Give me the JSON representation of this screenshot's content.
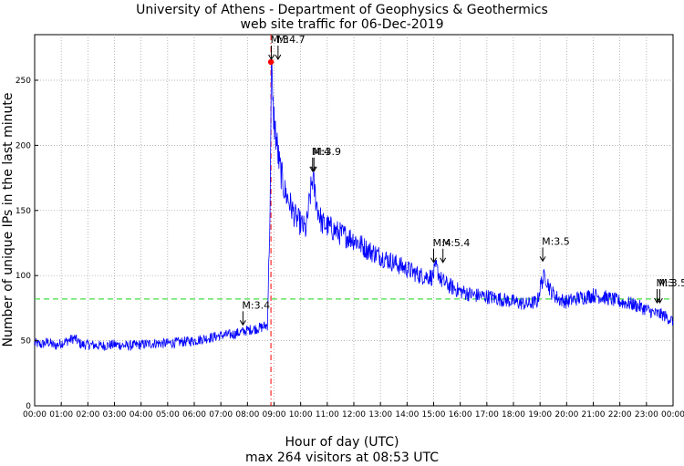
{
  "chart_data": {
    "type": "line",
    "title": "University of Athens - Department of Geophysics & Geothermics",
    "subtitle": "web site traffic for 06-Dec-2019",
    "xlabel": "Hour of day (UTC)",
    "footer": "max 264 visitors at 08:53 UTC",
    "ylabel": "Number of unique IPs in the last minute",
    "xlim": [
      0,
      24
    ],
    "ylim": [
      0,
      285
    ],
    "x_ticks": [
      "00:00",
      "01:00",
      "02:00",
      "03:00",
      "04:00",
      "05:00",
      "06:00",
      "07:00",
      "08:00",
      "09:00",
      "10:00",
      "11:00",
      "12:00",
      "13:00",
      "14:00",
      "15:00",
      "16:00",
      "17:00",
      "18:00",
      "19:00",
      "20:00",
      "21:00",
      "22:00",
      "23:00",
      "00:00"
    ],
    "y_ticks": [
      0,
      50,
      100,
      150,
      200,
      250
    ],
    "grid": true,
    "mean_line": 82,
    "peak": {
      "hour": 8.883,
      "value": 264
    },
    "series": [
      {
        "name": "visitors",
        "color": "#0000ff",
        "x": [
          0,
          0.25,
          0.5,
          0.75,
          1.0,
          1.25,
          1.5,
          1.75,
          2.0,
          2.5,
          3.0,
          3.5,
          4.0,
          4.5,
          5.0,
          5.5,
          6.0,
          6.5,
          7.0,
          7.5,
          7.83,
          8.0,
          8.25,
          8.5,
          8.75,
          8.85,
          8.9,
          8.95,
          9.05,
          9.2,
          9.4,
          9.6,
          9.8,
          10.0,
          10.2,
          10.35,
          10.45,
          10.6,
          10.8,
          11.0,
          11.5,
          12.0,
          12.5,
          13.0,
          13.5,
          14.0,
          14.5,
          14.95,
          15.1,
          15.3,
          15.6,
          16.0,
          16.5,
          17.0,
          17.5,
          18.0,
          18.5,
          18.9,
          19.05,
          19.2,
          19.4,
          19.7,
          20.0,
          20.5,
          21.0,
          21.5,
          22.0,
          22.5,
          23.0,
          23.3,
          23.6,
          24.0
        ],
        "y": [
          48,
          47,
          49,
          46,
          48,
          50,
          52,
          47,
          47,
          46,
          47,
          46,
          47,
          48,
          48,
          49,
          50,
          52,
          54,
          55,
          57,
          58,
          59,
          60,
          62,
          150,
          264,
          230,
          210,
          185,
          165,
          155,
          145,
          140,
          135,
          160,
          175,
          155,
          140,
          138,
          132,
          128,
          120,
          115,
          110,
          105,
          100,
          99,
          106,
          96,
          92,
          88,
          85,
          84,
          82,
          80,
          78,
          80,
          95,
          100,
          88,
          82,
          80,
          83,
          85,
          83,
          80,
          78,
          74,
          71,
          70,
          65
        ]
      }
    ],
    "annotations": [
      {
        "hour": 7.83,
        "value": 60,
        "label": "M:3.4"
      },
      {
        "hour": 8.9,
        "value": 264,
        "label": "M:3"
      },
      {
        "hour": 9.15,
        "value": 264,
        "label": "M:4.7"
      },
      {
        "hour": 10.45,
        "value": 178,
        "label": "M:4"
      },
      {
        "hour": 10.5,
        "value": 178,
        "label": "M:3.9"
      },
      {
        "hour": 15.0,
        "value": 108,
        "label": "M:4"
      },
      {
        "hour": 15.35,
        "value": 108,
        "label": "M:5.4"
      },
      {
        "hour": 19.1,
        "value": 109,
        "label": "M:3.5"
      },
      {
        "hour": 23.4,
        "value": 77,
        "label": "M:3"
      },
      {
        "hour": 23.5,
        "value": 77,
        "label": "M:3.5"
      }
    ]
  }
}
